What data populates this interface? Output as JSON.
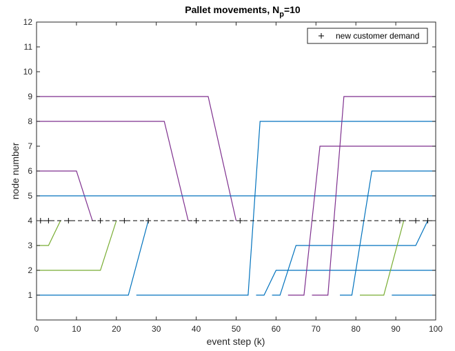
{
  "chart_data": {
    "type": "line",
    "title_main": "Pallet movements, N",
    "title_sub": "p",
    "title_tail": "=10",
    "xlabel": "event step (k)",
    "ylabel": "node number",
    "xlim": [
      0,
      100
    ],
    "ylim": [
      0,
      12
    ],
    "xticks": [
      0,
      10,
      20,
      30,
      40,
      50,
      60,
      70,
      80,
      90,
      100
    ],
    "yticks": [
      1,
      2,
      3,
      4,
      5,
      6,
      7,
      8,
      9,
      10,
      11,
      12
    ],
    "grid": false,
    "legend": {
      "position": "top-right",
      "label": "new customer demand",
      "marker": "+"
    },
    "demand_line": {
      "y": 4,
      "style": "dashed",
      "color": "#000000"
    },
    "demand_markers": [
      {
        "x": 1,
        "y": 4
      },
      {
        "x": 3,
        "y": 4
      },
      {
        "x": 8,
        "y": 4
      },
      {
        "x": 16,
        "y": 4
      },
      {
        "x": 22,
        "y": 4
      },
      {
        "x": 28,
        "y": 4
      },
      {
        "x": 40,
        "y": 4
      },
      {
        "x": 51,
        "y": 4
      },
      {
        "x": 91,
        "y": 4
      },
      {
        "x": 95,
        "y": 4
      },
      {
        "x": 98,
        "y": 4
      }
    ],
    "series": [
      {
        "color": "#77AC30",
        "points": [
          [
            0,
            3
          ],
          [
            3,
            3
          ],
          [
            6,
            4
          ]
        ]
      },
      {
        "color": "#77AC30",
        "points": [
          [
            0,
            2
          ],
          [
            16,
            2
          ],
          [
            20,
            4
          ]
        ]
      },
      {
        "color": "#7E2F8E",
        "points": [
          [
            0,
            6
          ],
          [
            10,
            6
          ],
          [
            14,
            4
          ]
        ]
      },
      {
        "color": "#7E2F8E",
        "points": [
          [
            0,
            8
          ],
          [
            32,
            8
          ],
          [
            38,
            4
          ]
        ]
      },
      {
        "color": "#7E2F8E",
        "points": [
          [
            0,
            9
          ],
          [
            43,
            9
          ],
          [
            50,
            4
          ]
        ]
      },
      {
        "color": "#0072BD",
        "points": [
          [
            0,
            5
          ],
          [
            100,
            5
          ]
        ]
      },
      {
        "color": "#0072BD",
        "points": [
          [
            0,
            1
          ],
          [
            23,
            1
          ],
          [
            28,
            4
          ]
        ]
      },
      {
        "color": "#0072BD",
        "points": [
          [
            25,
            1
          ],
          [
            53,
            1
          ],
          [
            56,
            8
          ],
          [
            100,
            8
          ]
        ]
      },
      {
        "color": "#0072BD",
        "points": [
          [
            55,
            1
          ],
          [
            57,
            1
          ],
          [
            60,
            2
          ],
          [
            100,
            2
          ]
        ]
      },
      {
        "color": "#0072BD",
        "points": [
          [
            59,
            1
          ],
          [
            61,
            1
          ],
          [
            65,
            3
          ],
          [
            95,
            3
          ],
          [
            98,
            4
          ]
        ]
      },
      {
        "color": "#7E2F8E",
        "points": [
          [
            63,
            1
          ],
          [
            67,
            1
          ],
          [
            71,
            7
          ],
          [
            100,
            7
          ]
        ]
      },
      {
        "color": "#7E2F8E",
        "points": [
          [
            69,
            1
          ],
          [
            73,
            1
          ],
          [
            77,
            9
          ],
          [
            100,
            9
          ]
        ]
      },
      {
        "color": "#0072BD",
        "points": [
          [
            76,
            1
          ],
          [
            79,
            1
          ],
          [
            84,
            6
          ],
          [
            100,
            6
          ]
        ]
      },
      {
        "color": "#77AC30",
        "points": [
          [
            81,
            1
          ],
          [
            87,
            1
          ],
          [
            92,
            4
          ]
        ]
      },
      {
        "color": "#0072BD",
        "points": [
          [
            89,
            1
          ],
          [
            100,
            1
          ]
        ]
      }
    ]
  }
}
